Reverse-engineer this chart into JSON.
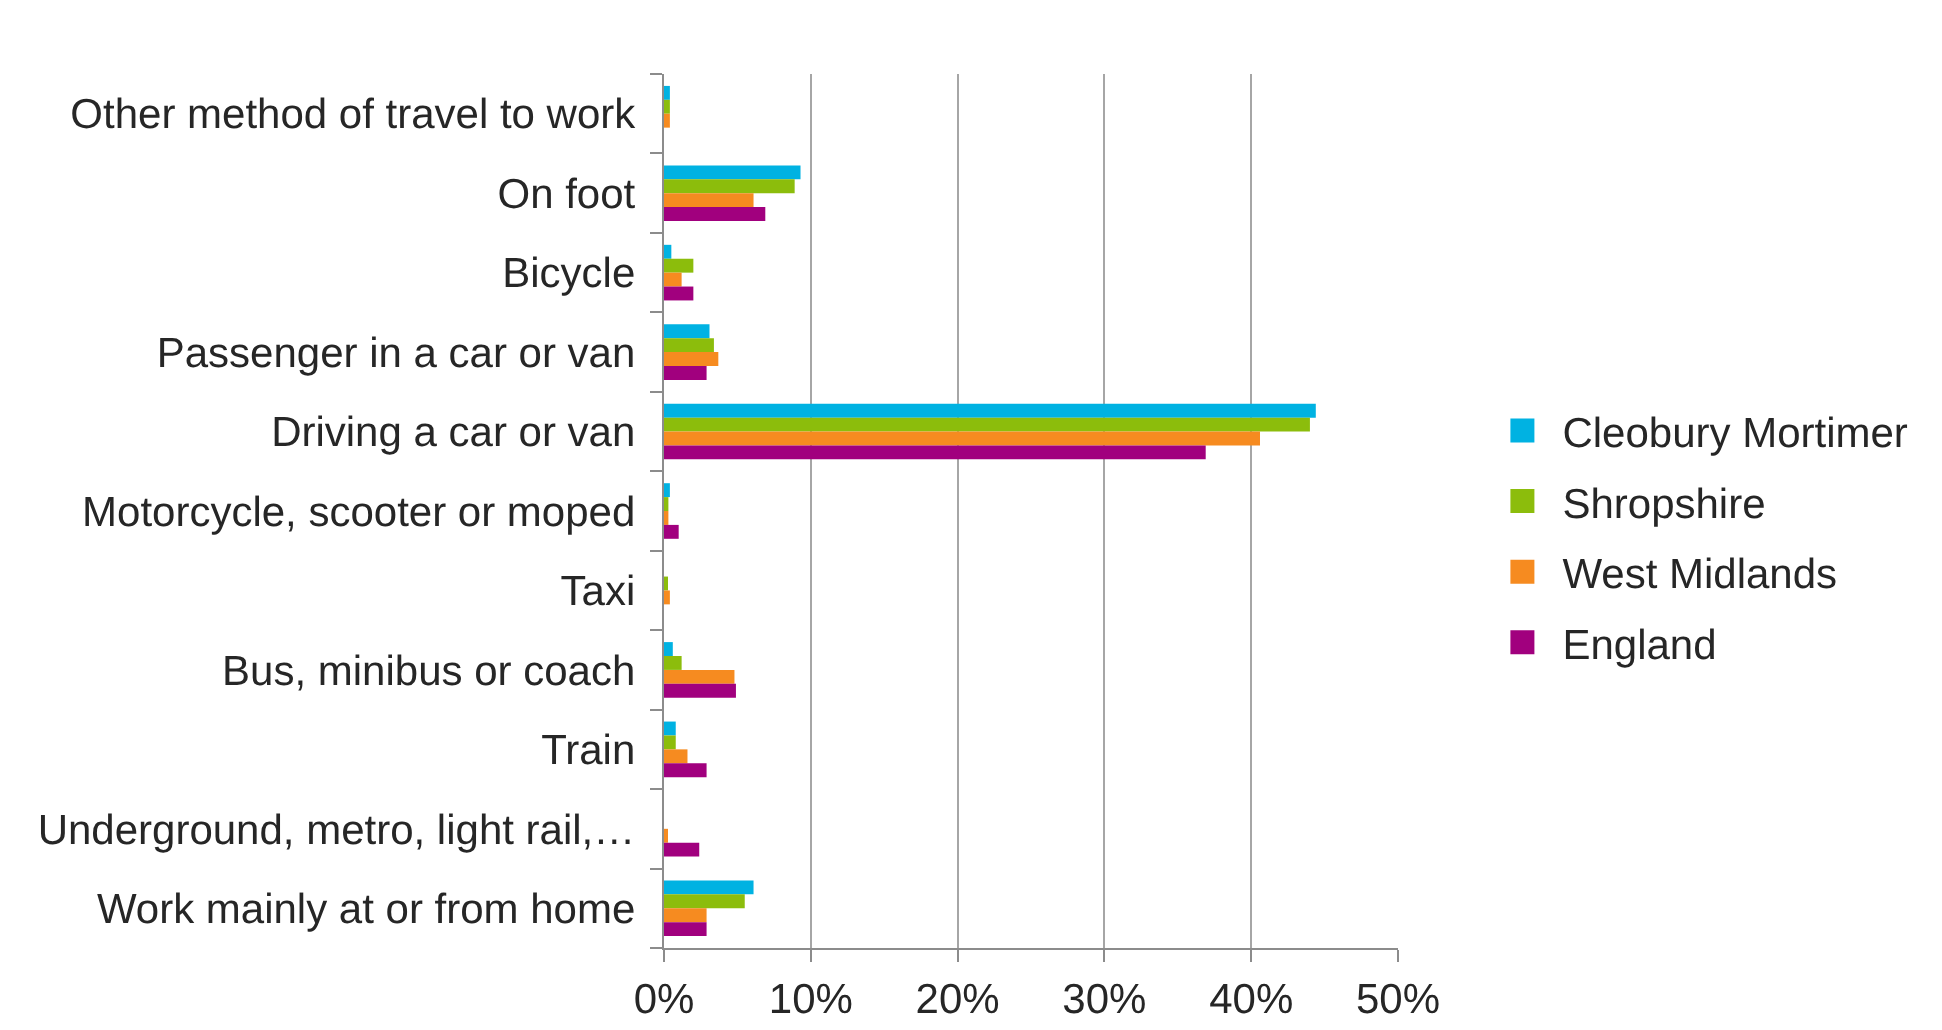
{
  "chart_data": {
    "type": "bar",
    "orientation": "horizontal",
    "categories": [
      "Other method of travel to work",
      "On foot",
      "Bicycle",
      "Passenger in a car or van",
      "Driving a car or van",
      "Motorcycle, scooter or moped",
      "Taxi",
      "Bus, minibus or coach",
      "Train",
      "Underground, metro, light rail,…",
      "Work mainly at or from home"
    ],
    "series": [
      {
        "name": "Cleobury Mortimer",
        "color": "#00b2e2",
        "values": [
          0.4,
          9.3,
          0.5,
          3.1,
          44.4,
          0.4,
          0,
          0.6,
          0.8,
          0,
          6.1
        ]
      },
      {
        "name": "Shropshire",
        "color": "#8cbd0c",
        "values": [
          0.4,
          8.9,
          2.0,
          3.4,
          44.0,
          0.3,
          0.2,
          1.2,
          0.8,
          0,
          5.5
        ]
      },
      {
        "name": "West Midlands",
        "color": "#f68b20",
        "values": [
          0.4,
          6.1,
          1.2,
          3.7,
          40.6,
          0.3,
          0.4,
          4.8,
          1.6,
          0.2,
          2.9
        ]
      },
      {
        "name": "England",
        "color": "#a1007e",
        "values": [
          0,
          6.9,
          2.0,
          2.9,
          36.9,
          1.0,
          0,
          4.9,
          2.9,
          2.4,
          2.9
        ]
      }
    ],
    "xlim": [
      0,
      50
    ],
    "xticks": [
      {
        "value": 0,
        "label": "0%"
      },
      {
        "value": 10,
        "label": "10%"
      },
      {
        "value": 20,
        "label": "20%"
      },
      {
        "value": 30,
        "label": "30%"
      },
      {
        "value": 40,
        "label": "40%"
      },
      {
        "value": 50,
        "label": "50%"
      }
    ],
    "grid": "x",
    "legend": "right"
  }
}
